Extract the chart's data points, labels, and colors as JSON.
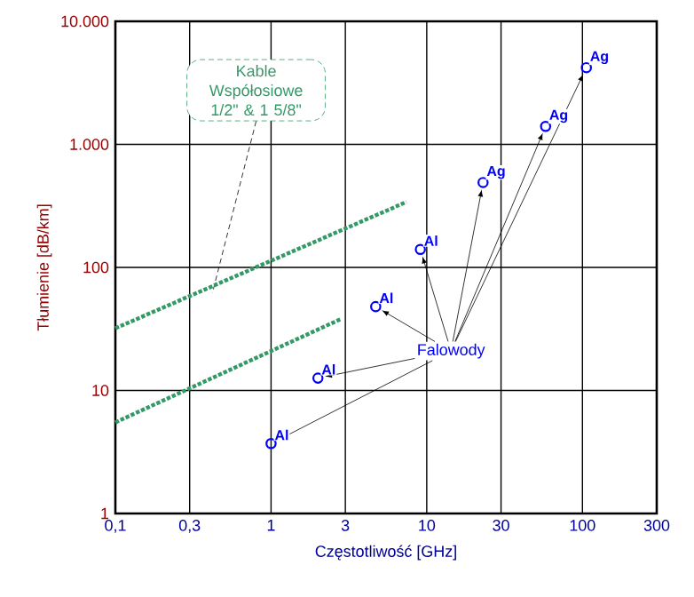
{
  "chart_data": {
    "type": "scatter",
    "xlabel": "Częstotliwość [GHz]",
    "ylabel": "Tłumienie [dB/km]",
    "annotations": [
      {
        "text": "Kable Współosiowe 1/2\" & 1 5/8\"",
        "x": 0.42,
        "y": 62
      },
      {
        "text": "Falowody",
        "x": 9.1,
        "y": 140
      }
    ],
    "xlim": [
      0.1,
      300
    ],
    "ylim": [
      1,
      10000
    ],
    "xticks": [
      {
        "value": 0.1,
        "label": "0,1"
      },
      {
        "value": 0.3,
        "label": "0,3"
      },
      1,
      3,
      10,
      30,
      100,
      300
    ],
    "yticks": [
      1,
      10,
      100,
      {
        "value": 1000,
        "label": "1.000"
      },
      {
        "value": 10000,
        "label": "10.000"
      }
    ],
    "log": "xy",
    "grid": true,
    "marker": "circle",
    "line_style": "dotted",
    "series": [
      {
        "type": "line",
        "marker": "none",
        "color": "#339966",
        "x": [
          0.1,
          7.4
        ],
        "values": [
          32,
          340
        ]
      },
      {
        "type": "line",
        "marker": "none",
        "color": "#339966",
        "x": [
          0.1,
          2.8
        ],
        "values": [
          5.5,
          38
        ]
      },
      {
        "name": "Al",
        "color": "#0000ff",
        "x": [
          1,
          2,
          4.7,
          9.1
        ],
        "values": [
          3.7,
          12.6,
          48,
          140
        ]
      },
      {
        "name": "Ag",
        "color": "#0000ff",
        "x": [
          23,
          58,
          106
        ],
        "values": [
          490,
          1400,
          4200
        ]
      }
    ]
  }
}
